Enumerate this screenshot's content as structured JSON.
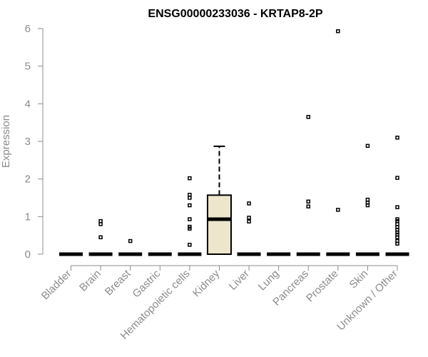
{
  "chart_data": {
    "type": "box",
    "title": "ENSG00000233036 - KRTAP8-2P",
    "xlabel": "",
    "ylabel": "Expression",
    "ylim": [
      0,
      6
    ],
    "yticks": [
      0,
      1,
      2,
      3,
      4,
      5,
      6
    ],
    "grid": false,
    "legend": "none",
    "colors": {
      "box_fill": "#ede6cd",
      "stroke": "#000000",
      "axis": "#8c8c8c",
      "title": "#000000"
    },
    "categories": [
      "Bladder",
      "Brain",
      "Breast",
      "Gastric",
      "Hematopoietic cells",
      "Kidney",
      "Liver",
      "Lung",
      "Pancreas",
      "Prostate",
      "Skin",
      "Unknown / Other"
    ],
    "boxes": [
      {
        "category": "Bladder",
        "q1": 0,
        "median": 0,
        "q3": 0,
        "whisker_low": 0,
        "whisker_high": 0,
        "outliers": []
      },
      {
        "category": "Brain",
        "q1": 0,
        "median": 0,
        "q3": 0,
        "whisker_low": 0,
        "whisker_high": 0,
        "outliers": [
          0.45,
          0.8,
          0.88
        ]
      },
      {
        "category": "Breast",
        "q1": 0,
        "median": 0,
        "q3": 0,
        "whisker_low": 0,
        "whisker_high": 0,
        "outliers": [
          0.35
        ]
      },
      {
        "category": "Gastric",
        "q1": 0,
        "median": 0,
        "q3": 0,
        "whisker_low": 0,
        "whisker_high": 0,
        "outliers": []
      },
      {
        "category": "Hematopoietic cells",
        "q1": 0,
        "median": 0,
        "q3": 0,
        "whisker_low": 0,
        "whisker_high": 0,
        "outliers": [
          0.25,
          0.68,
          0.73,
          0.93,
          1.3,
          1.5,
          1.58,
          2.02
        ]
      },
      {
        "category": "Kidney",
        "q1": 0,
        "median": 0.93,
        "q3": 1.57,
        "whisker_low": 0,
        "whisker_high": 2.87,
        "outliers": []
      },
      {
        "category": "Liver",
        "q1": 0,
        "median": 0,
        "q3": 0,
        "whisker_low": 0,
        "whisker_high": 0,
        "outliers": [
          0.87,
          0.97,
          1.35
        ]
      },
      {
        "category": "Lung",
        "q1": 0,
        "median": 0,
        "q3": 0,
        "whisker_low": 0,
        "whisker_high": 0,
        "outliers": []
      },
      {
        "category": "Pancreas",
        "q1": 0,
        "median": 0,
        "q3": 0,
        "whisker_low": 0,
        "whisker_high": 0,
        "outliers": [
          1.27,
          1.4,
          3.65
        ]
      },
      {
        "category": "Prostate",
        "q1": 0,
        "median": 0,
        "q3": 0,
        "whisker_low": 0,
        "whisker_high": 0,
        "outliers": [
          1.18,
          5.93
        ]
      },
      {
        "category": "Skin",
        "q1": 0,
        "median": 0,
        "q3": 0,
        "whisker_low": 0,
        "whisker_high": 0,
        "outliers": [
          1.3,
          1.37,
          1.45,
          2.88
        ]
      },
      {
        "category": "Unknown / Other",
        "q1": 0,
        "median": 0,
        "q3": 0,
        "whisker_low": 0,
        "whisker_high": 0,
        "outliers": [
          0.28,
          0.35,
          0.45,
          0.52,
          0.58,
          0.65,
          0.72,
          0.8,
          0.88,
          0.93,
          1.25,
          2.03,
          3.1
        ]
      }
    ]
  }
}
